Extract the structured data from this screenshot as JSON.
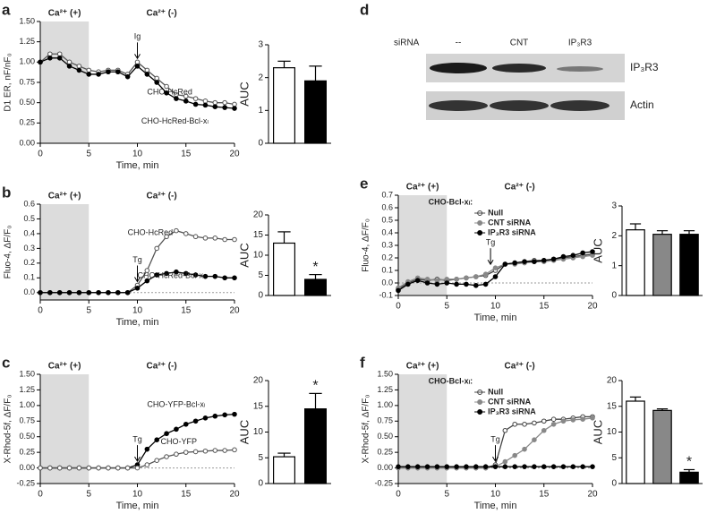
{
  "chart_data": [
    {
      "type": "line",
      "panel": "a",
      "headers": [
        "Ca²⁺ (+)",
        "Ca²⁺ (-)"
      ],
      "shade": [
        0,
        5
      ],
      "x": [
        0,
        1,
        2,
        3,
        4,
        5,
        6,
        7,
        8,
        9,
        10,
        11,
        12,
        13,
        14,
        15,
        16,
        17,
        18,
        19,
        20
      ],
      "xlim": [
        0,
        20
      ],
      "xticks": [
        0,
        5,
        10,
        15,
        20
      ],
      "ylim": [
        0,
        1.5
      ],
      "yticks": [
        {
          "value": 0,
          "label": "0.00"
        },
        0.25,
        {
          "value": 0.5,
          "label": "0.50"
        },
        0.75,
        {
          "value": 1,
          "label": "1.00"
        },
        1.25,
        {
          "value": 1.5,
          "label": "1.50"
        }
      ],
      "x_label": "Time, min",
      "y_label": "D1 ER, nF/nF₀",
      "legend": false,
      "zero_line": false,
      "series": [
        {
          "name": "CHO-HcRed",
          "color": "#555555",
          "marker_fill": "#ffffff",
          "values": [
            1.0,
            1.1,
            1.1,
            1.0,
            0.95,
            0.9,
            0.88,
            0.9,
            0.9,
            0.85,
            1.0,
            0.9,
            0.8,
            0.7,
            0.6,
            0.58,
            0.55,
            0.52,
            0.5,
            0.5,
            0.48
          ]
        },
        {
          "name": "CHO-HcRed-Bcl-xₗ",
          "color": "#000000",
          "marker_fill": "#000000",
          "values": [
            1.0,
            1.05,
            1.05,
            0.95,
            0.9,
            0.85,
            0.85,
            0.88,
            0.88,
            0.82,
            0.95,
            0.85,
            0.75,
            0.62,
            0.55,
            0.52,
            0.48,
            0.47,
            0.45,
            0.44,
            0.43
          ]
        }
      ],
      "annotations": [
        {
          "text": "Ig",
          "x": 10
        }
      ]
    },
    {
      "type": "bar",
      "ylim": [
        0,
        3
      ],
      "yticks": [
        0,
        1,
        2,
        3
      ],
      "y_label": "AUC",
      "values": [
        2.3,
        1.9
      ],
      "errors": [
        0.2,
        0.45
      ],
      "colors": [
        "#ffffff",
        "#000000"
      ],
      "marks": []
    },
    {
      "type": "line",
      "panel": "b",
      "headers": [
        "Ca²⁺ (+)",
        "Ca²⁺ (-)"
      ],
      "shade": [
        0,
        5
      ],
      "x": [
        0,
        1,
        2,
        3,
        4,
        5,
        6,
        7,
        8,
        9,
        10,
        11,
        12,
        13,
        14,
        15,
        16,
        17,
        18,
        19,
        20
      ],
      "xlim": [
        0,
        20
      ],
      "xticks": [
        0,
        5,
        10,
        15,
        20
      ],
      "ylim": [
        -0.05,
        0.6
      ],
      "yticks": [
        {
          "value": 0,
          "label": "0.0"
        },
        0.1,
        0.2,
        0.3,
        0.4,
        0.5,
        0.6
      ],
      "x_label": "Time, min",
      "y_label": "Fluo-4, ΔF/F₀",
      "legend": false,
      "zero_line": true,
      "series": [
        {
          "name": "CHO-HcRed",
          "color": "#555555",
          "marker_fill": "#ffffff",
          "values": [
            0,
            0,
            0,
            0,
            0,
            0,
            0,
            0,
            0,
            0,
            0.05,
            0.15,
            0.3,
            0.38,
            0.42,
            0.4,
            0.38,
            0.37,
            0.37,
            0.36,
            0.36
          ]
        },
        {
          "name": "CHO-HcRed-Bcl-xₗ",
          "color": "#000000",
          "marker_fill": "#000000",
          "values": [
            0,
            0,
            0,
            0,
            0,
            0,
            0,
            0,
            0,
            0,
            0.03,
            0.08,
            0.12,
            0.13,
            0.14,
            0.13,
            0.12,
            0.11,
            0.11,
            0.1,
            0.1
          ]
        }
      ],
      "annotations": [
        {
          "text": "Tg",
          "x": 10
        }
      ]
    },
    {
      "type": "bar",
      "ylim": [
        0,
        20
      ],
      "yticks": [
        0,
        5,
        10,
        15,
        20
      ],
      "y_label": "AUC",
      "values": [
        13,
        4
      ],
      "errors": [
        2.8,
        1.2
      ],
      "colors": [
        "#ffffff",
        "#000000"
      ],
      "marks": [
        "",
        "*"
      ]
    },
    {
      "type": "line",
      "panel": "c",
      "headers": [
        "Ca²⁺ (+)",
        "Ca²⁺ (-)"
      ],
      "shade": [
        0,
        5
      ],
      "x": [
        0,
        1,
        2,
        3,
        4,
        5,
        6,
        7,
        8,
        9,
        10,
        11,
        12,
        13,
        14,
        15,
        16,
        17,
        18,
        19,
        20
      ],
      "xlim": [
        0,
        20
      ],
      "xticks": [
        0,
        5,
        10,
        15,
        20
      ],
      "ylim": [
        -0.25,
        1.5
      ],
      "yticks": [
        -0.25,
        {
          "value": 0,
          "label": "0.00"
        },
        0.25,
        {
          "value": 0.5,
          "label": "0.50"
        },
        0.75,
        {
          "value": 1,
          "label": "1.00"
        },
        1.25,
        {
          "value": 1.5,
          "label": "1.50"
        }
      ],
      "x_label": "Time, min",
      "y_label": "X-Rhod-5f, ΔF/F₀",
      "legend": false,
      "zero_line": true,
      "series": [
        {
          "name": "CHO-YFP-Bcl-xₗ",
          "color": "#000000",
          "marker_fill": "#000000",
          "values": [
            0,
            0,
            0,
            0,
            0,
            0,
            0,
            0,
            0,
            0,
            0.05,
            0.3,
            0.45,
            0.55,
            0.62,
            0.7,
            0.75,
            0.8,
            0.83,
            0.85,
            0.86
          ]
        },
        {
          "name": "CHO-YFP",
          "color": "#555555",
          "marker_fill": "#ffffff",
          "values": [
            0,
            0,
            0,
            0,
            0,
            0,
            0,
            0,
            0,
            0,
            0,
            0.05,
            0.12,
            0.18,
            0.22,
            0.25,
            0.26,
            0.27,
            0.28,
            0.28,
            0.29
          ]
        }
      ],
      "annotations": [
        {
          "text": "Tg",
          "x": 10
        }
      ]
    },
    {
      "type": "bar",
      "ylim": [
        0,
        20
      ],
      "yticks": [
        0,
        5,
        10,
        15,
        20
      ],
      "y_label": "AUC",
      "values": [
        5.2,
        14.5
      ],
      "errors": [
        0.7,
        3
      ],
      "colors": [
        "#ffffff",
        "#000000"
      ],
      "marks": [
        "",
        "*"
      ]
    },
    {
      "type": "line",
      "panel": "e",
      "headers": [
        "Ca²⁺ (+)",
        "Ca²⁺ (-)"
      ],
      "shade": [
        0,
        5
      ],
      "x": [
        0,
        1,
        2,
        3,
        4,
        5,
        6,
        7,
        8,
        9,
        10,
        11,
        12,
        13,
        14,
        15,
        16,
        17,
        18,
        19,
        20
      ],
      "xlim": [
        0,
        20
      ],
      "xticks": [
        0,
        5,
        10,
        15,
        20
      ],
      "ylim": [
        -0.1,
        0.7
      ],
      "yticks": [
        -0.1,
        {
          "value": 0,
          "label": "0.0"
        },
        0.1,
        0.2,
        0.3,
        0.4,
        0.5,
        0.6,
        0.7
      ],
      "x_label": "Time, min",
      "y_label": "Fluo-4, ΔF/F₀",
      "legend": true,
      "legend_title": "CHO-Bcl-xₗ:",
      "zero_line": true,
      "series": [
        {
          "name": "Null",
          "color": "#444444",
          "marker_fill": "#ffffff",
          "values": [
            -0.05,
            0,
            0.03,
            0.02,
            0.03,
            0.02,
            0.03,
            0.04,
            0.05,
            0.06,
            0.1,
            0.15,
            0.16,
            0.17,
            0.18,
            0.18,
            0.19,
            0.2,
            0.21,
            0.22,
            0.23
          ]
        },
        {
          "name": "CNT siRNA",
          "color": "#888888",
          "marker_fill": "#888888",
          "values": [
            -0.04,
            0.01,
            0.04,
            0.03,
            0.02,
            0.03,
            0.03,
            0.04,
            0.05,
            0.07,
            0.12,
            0.15,
            0.15,
            0.16,
            0.17,
            0.17,
            0.18,
            0.19,
            0.2,
            0.21,
            0.22
          ]
        },
        {
          "name": "IP₃R3 siRNA",
          "color": "#000000",
          "marker_fill": "#000000",
          "values": [
            -0.06,
            -0.01,
            0.02,
            0,
            -0.01,
            0,
            -0.01,
            -0.01,
            -0.02,
            -0.01,
            0.05,
            0.15,
            0.16,
            0.17,
            0.17,
            0.18,
            0.19,
            0.21,
            0.22,
            0.24,
            0.25
          ]
        }
      ],
      "annotations": [
        {
          "text": "Tg",
          "x": 9.5
        }
      ]
    },
    {
      "type": "bar",
      "ylim": [
        0,
        3
      ],
      "yticks": [
        0,
        1,
        2,
        3
      ],
      "y_label": "AUC",
      "values": [
        2.2,
        2.05,
        2.05
      ],
      "errors": [
        0.2,
        0.12,
        0.12
      ],
      "colors": [
        "#ffffff",
        "#888888",
        "#000000"
      ],
      "marks": []
    },
    {
      "type": "line",
      "panel": "f",
      "headers": [
        "Ca²⁺ (+)",
        "Ca²⁺ (-)"
      ],
      "shade": [
        0,
        5
      ],
      "x": [
        0,
        1,
        2,
        3,
        4,
        5,
        6,
        7,
        8,
        9,
        10,
        11,
        12,
        13,
        14,
        15,
        16,
        17,
        18,
        19,
        20
      ],
      "xlim": [
        0,
        20
      ],
      "xticks": [
        0,
        5,
        10,
        15,
        20
      ],
      "ylim": [
        -0.25,
        1.5
      ],
      "yticks": [
        -0.25,
        {
          "value": 0,
          "label": "0.00"
        },
        0.25,
        {
          "value": 0.5,
          "label": "0.50"
        },
        0.75,
        {
          "value": 1,
          "label": "1.00"
        },
        1.25,
        {
          "value": 1.5,
          "label": "1.50"
        }
      ],
      "x_label": "Time, min",
      "y_label": "X-Rhod-5f, ΔF/F₀",
      "legend": true,
      "legend_title": "CHO-Bcl-xₗ:",
      "zero_line": true,
      "series": [
        {
          "name": "Null",
          "color": "#444444",
          "marker_fill": "#ffffff",
          "values": [
            0,
            0,
            0,
            0,
            0,
            0,
            0,
            0,
            0,
            0,
            0.05,
            0.6,
            0.7,
            0.7,
            0.72,
            0.75,
            0.78,
            0.78,
            0.8,
            0.82,
            0.82
          ]
        },
        {
          "name": "CNT siRNA",
          "color": "#888888",
          "marker_fill": "#888888",
          "values": [
            0,
            0,
            0,
            0,
            0,
            0,
            0,
            0,
            0,
            0,
            0.02,
            0.1,
            0.2,
            0.3,
            0.45,
            0.6,
            0.7,
            0.75,
            0.77,
            0.78,
            0.8
          ]
        },
        {
          "name": "IP₃R3 siRNA",
          "color": "#000000",
          "marker_fill": "#000000",
          "values": [
            0.02,
            0.02,
            0.02,
            0.02,
            0.02,
            0.02,
            0.02,
            0.02,
            0.02,
            0.02,
            0.02,
            0.02,
            0.02,
            0.02,
            0.02,
            0.02,
            0.02,
            0.02,
            0.02,
            0.02,
            0.02
          ]
        }
      ],
      "annotations": [
        {
          "text": "Tg",
          "x": 10
        }
      ]
    },
    {
      "type": "bar",
      "ylim": [
        0,
        20
      ],
      "yticks": [
        0,
        5,
        10,
        15,
        20
      ],
      "y_label": "AUC",
      "values": [
        16,
        14.2,
        2.2
      ],
      "errors": [
        0.8,
        0.3,
        0.5
      ],
      "colors": [
        "#ffffff",
        "#888888",
        "#000000"
      ],
      "marks": [
        "",
        "",
        "*"
      ]
    }
  ],
  "blot": {
    "panel": "d",
    "lane_title": "siRNA",
    "lanes": [
      "--",
      "CNT",
      "IP₃R3"
    ],
    "rows": [
      "IP₃R3",
      "Actin"
    ]
  }
}
